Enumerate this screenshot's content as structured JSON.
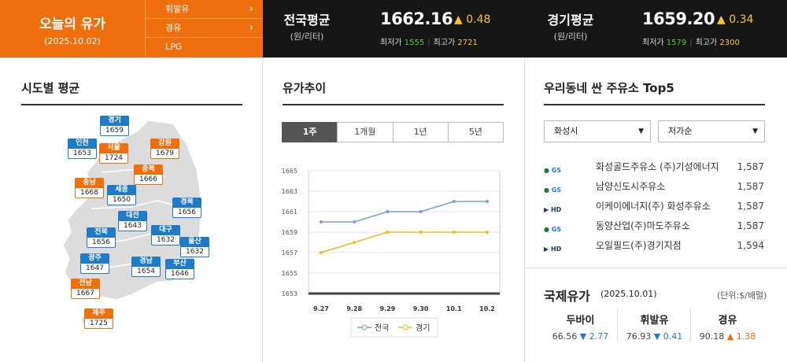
{
  "today": {
    "title": "오늘의 유가",
    "date": "(2025.10.02)"
  },
  "fuel_tabs": [
    {
      "label": "휘발유",
      "chevron": "›"
    },
    {
      "label": "경유",
      "chevron": "›"
    },
    {
      "label": "LPG"
    }
  ],
  "national": {
    "label": "전국평균",
    "unit": "(원/리터)",
    "price": "1662.16",
    "change_icon": "▲",
    "change": "0.48",
    "min_label": "최저가",
    "min": "1555",
    "max_label": "최고가",
    "max": "2721"
  },
  "gyeonggi": {
    "label": "경기평균",
    "unit": "(원/리터)",
    "price": "1659.20",
    "change_icon": "▲",
    "change": "0.34",
    "min_label": "최저가",
    "min": "1579",
    "max_label": "최고가",
    "max": "2300"
  },
  "regional": {
    "title": "시도별 평균",
    "regions": [
      {
        "name": "경기",
        "price": "1659",
        "color": "blue"
      },
      {
        "name": "인천",
        "price": "1653",
        "color": "blue"
      },
      {
        "name": "서울",
        "price": "1724",
        "color": "orange"
      },
      {
        "name": "강원",
        "price": "1679",
        "color": "orange"
      },
      {
        "name": "충북",
        "price": "1666",
        "color": "orange"
      },
      {
        "name": "충남",
        "price": "1668",
        "color": "orange"
      },
      {
        "name": "세종",
        "price": "1650",
        "color": "blue"
      },
      {
        "name": "대전",
        "price": "1643",
        "color": "blue"
      },
      {
        "name": "경북",
        "price": "1656",
        "color": "blue"
      },
      {
        "name": "전북",
        "price": "1656",
        "color": "blue"
      },
      {
        "name": "대구",
        "price": "1632",
        "color": "blue"
      },
      {
        "name": "울산",
        "price": "1632",
        "color": "blue"
      },
      {
        "name": "광주",
        "price": "1647",
        "color": "blue"
      },
      {
        "name": "경남",
        "price": "1654",
        "color": "blue"
      },
      {
        "name": "부산",
        "price": "1646",
        "color": "blue"
      },
      {
        "name": "전남",
        "price": "1667",
        "color": "orange"
      },
      {
        "name": "제주",
        "price": "1725",
        "color": "orange"
      }
    ]
  },
  "trend": {
    "title": "유가추이",
    "tabs": [
      "1주",
      "1개월",
      "1년",
      "5년"
    ],
    "active_tab": "1주"
  },
  "chart_data": {
    "type": "line",
    "x": [
      "9.27",
      "9.28",
      "9.29",
      "9.30",
      "10.1",
      "10.2"
    ],
    "series": [
      {
        "name": "전국",
        "values": [
          1660,
          1660,
          1661,
          1661,
          1662,
          1662
        ],
        "color": "#7a9fd6"
      },
      {
        "name": "경기",
        "values": [
          1657,
          1658,
          1659,
          1659,
          1659,
          1659
        ],
        "color": "#f2b824"
      }
    ],
    "ylim": [
      1653,
      1665
    ],
    "yticks": [
      "1653",
      "1655",
      "1657",
      "1659",
      "1661",
      "1663",
      "1665"
    ],
    "grid": true,
    "legend": "bottom"
  },
  "stations": {
    "title": "우리동네 싼 주유소 Top5",
    "region_select": "화성시",
    "sort_select": "저가순",
    "items": [
      {
        "brand": "GS칼텍스",
        "name": "화성골드주유소 (주)기성에너지",
        "price": "1,587"
      },
      {
        "brand": "GS칼텍스",
        "name": "남양신도시주유소",
        "price": "1,587"
      },
      {
        "brand": "HD현대오일뱅크",
        "name": "이케이에너지(주) 화성주유소",
        "price": "1,587"
      },
      {
        "brand": "GS칼텍스",
        "name": "동양산업(주)마도주유소",
        "price": "1,587"
      },
      {
        "brand": "HD현대오일뱅크",
        "name": "오일필드(주)경기지점",
        "price": "1,594"
      }
    ]
  },
  "intl": {
    "title": "국제유가",
    "date": "(2025.10.01)",
    "unit": "(단위:$/배럴)",
    "items": [
      {
        "name": "두바이",
        "price": "66.56",
        "dir_icon": "▼",
        "change": "2.77",
        "dir": "down"
      },
      {
        "name": "휘발유",
        "price": "76.93",
        "dir_icon": "▼",
        "change": "0.41",
        "dir": "down"
      },
      {
        "name": "경유",
        "price": "90.18",
        "dir_icon": "▲",
        "change": "1.38",
        "dir": "up"
      }
    ]
  },
  "colors": {
    "orange": "#ee6f0c",
    "blue": "#1d7bc8",
    "dark": "#161616"
  }
}
